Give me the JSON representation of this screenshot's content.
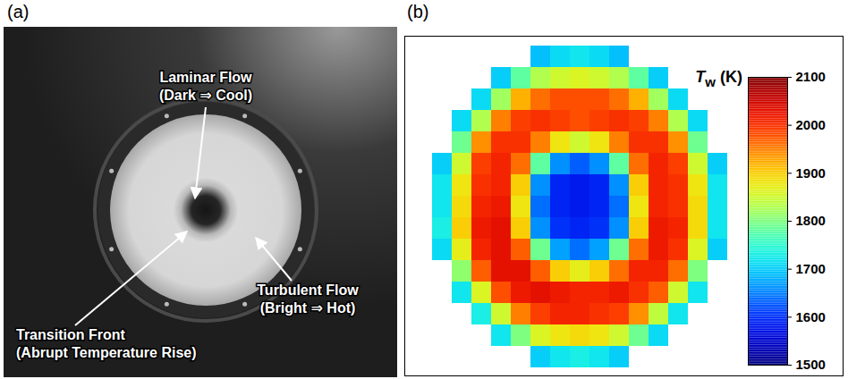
{
  "panel_a": {
    "label": "(a)",
    "annotations": [
      {
        "text": "Laminar Flow",
        "subtext": "(Dark ⇒ Cool)"
      },
      {
        "text": "Transition Front",
        "subtext": "(Abrupt Temperature Rise)"
      },
      {
        "text": "Turbulent Flow",
        "subtext": "(Bright ⇒ Hot)"
      }
    ]
  },
  "chart_data": {
    "type": "heatmap",
    "label": "(b)",
    "colorbar": {
      "label_symbol": "T",
      "label_subscript": "w",
      "label_unit": "(K)",
      "range": [
        1500,
        2100
      ],
      "ticks": [
        1500,
        1600,
        1700,
        1800,
        1900,
        2000,
        2100
      ]
    },
    "cells": [
      [
        null,
        null,
        null,
        null,
        null,
        1690,
        1710,
        1720,
        1710,
        1690,
        null,
        null,
        null,
        null,
        null
      ],
      [
        null,
        null,
        null,
        1700,
        1780,
        1830,
        1850,
        1860,
        1850,
        1830,
        1780,
        1700,
        null,
        null,
        null
      ],
      [
        null,
        null,
        1710,
        1820,
        1920,
        1960,
        1980,
        1980,
        1980,
        1960,
        1920,
        1820,
        1710,
        null,
        null
      ],
      [
        null,
        1710,
        1830,
        1950,
        1990,
        2000,
        1990,
        1980,
        1990,
        2000,
        1990,
        1950,
        1830,
        1710,
        null
      ],
      [
        null,
        1790,
        1940,
        2000,
        2000,
        1950,
        1880,
        1850,
        1880,
        1950,
        2000,
        2000,
        1940,
        1790,
        null
      ],
      [
        1700,
        1850,
        1990,
        2010,
        1960,
        1780,
        1660,
        1630,
        1660,
        1780,
        1960,
        2010,
        1990,
        1850,
        1700
      ],
      [
        1720,
        1880,
        2000,
        2010,
        1900,
        1660,
        1590,
        1580,
        1590,
        1660,
        1900,
        2010,
        2000,
        1880,
        1720
      ],
      [
        1720,
        1890,
        2010,
        2020,
        1880,
        1640,
        1590,
        1580,
        1590,
        1640,
        1880,
        2010,
        2000,
        1890,
        1720
      ],
      [
        1730,
        1900,
        2020,
        2030,
        1900,
        1660,
        1600,
        1590,
        1600,
        1660,
        1900,
        2020,
        2010,
        1890,
        1720
      ],
      [
        1710,
        1870,
        2010,
        2030,
        1970,
        1790,
        1670,
        1640,
        1670,
        1790,
        1960,
        2020,
        2000,
        1860,
        1700
      ],
      [
        null,
        1810,
        1970,
        2030,
        2030,
        1970,
        1900,
        1870,
        1900,
        1960,
        2010,
        2010,
        1960,
        1800,
        null
      ],
      [
        null,
        1720,
        1860,
        1980,
        2020,
        2030,
        2020,
        2010,
        2010,
        2020,
        2000,
        1970,
        1850,
        1720,
        null
      ],
      [
        null,
        null,
        1730,
        1850,
        1950,
        1990,
        2010,
        2010,
        2000,
        1990,
        1940,
        1840,
        1720,
        null,
        null
      ],
      [
        null,
        null,
        null,
        1720,
        1800,
        1860,
        1880,
        1890,
        1880,
        1850,
        1790,
        1710,
        null,
        null,
        null
      ],
      [
        null,
        null,
        null,
        null,
        null,
        1700,
        1720,
        1730,
        1720,
        1700,
        null,
        null,
        null,
        null,
        null
      ]
    ]
  }
}
